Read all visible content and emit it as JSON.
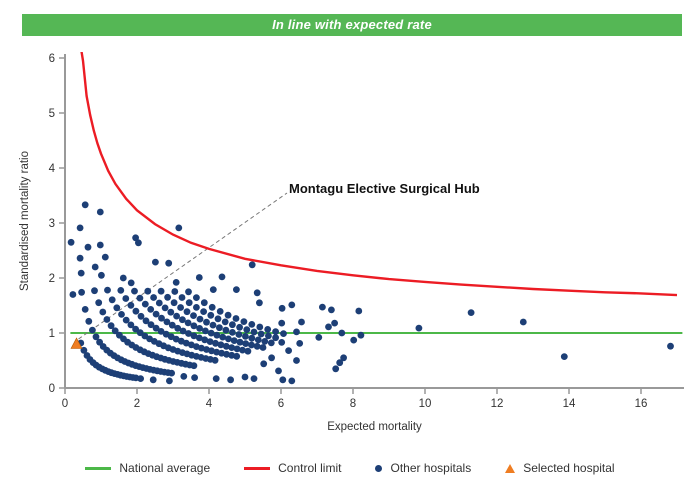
{
  "banner": {
    "text": "In line with expected rate",
    "color": "#55b755"
  },
  "colors": {
    "national_average": "#4cb848",
    "control_limit": "#ec1c24",
    "other_hospitals": "#1d3f76",
    "selected_hospital": "#ef7d22",
    "axis": "#999999",
    "annotation_line": "#777777",
    "text": "#333333"
  },
  "chart_data": {
    "type": "scatter",
    "title": "In line with expected rate",
    "xlabel": "Expected mortality",
    "ylabel": "Standardised mortality ratio",
    "xlim": [
      0,
      17.2
    ],
    "ylim": [
      0,
      6.1
    ],
    "xticks": [
      0,
      2,
      4,
      6,
      8,
      10,
      12,
      14,
      16
    ],
    "yticks": [
      0,
      1,
      2,
      3,
      4,
      5,
      6
    ],
    "grid": false,
    "legend_position": "bottom",
    "national_average": 1.0,
    "control_limit": {
      "description": "upper control limit, approx y = 1 + 3.26 * x^-0.546",
      "points": [
        [
          0.44,
          6.2
        ],
        [
          0.5,
          5.95
        ],
        [
          0.6,
          5.31
        ],
        [
          0.7,
          4.96
        ],
        [
          0.8,
          4.68
        ],
        [
          0.9,
          4.45
        ],
        [
          1.0,
          4.26
        ],
        [
          1.2,
          3.95
        ],
        [
          1.4,
          3.71
        ],
        [
          1.7,
          3.44
        ],
        [
          2.0,
          3.23
        ],
        [
          2.5,
          2.98
        ],
        [
          3.0,
          2.79
        ],
        [
          3.5,
          2.64
        ],
        [
          4.0,
          2.53
        ],
        [
          5.0,
          2.35
        ],
        [
          6.0,
          2.23
        ],
        [
          7.0,
          2.13
        ],
        [
          8.0,
          2.05
        ],
        [
          9.0,
          1.98
        ],
        [
          10.0,
          1.93
        ],
        [
          11.0,
          1.88
        ],
        [
          12.0,
          1.84
        ],
        [
          13.0,
          1.8
        ],
        [
          14.0,
          1.77
        ],
        [
          15.0,
          1.74
        ],
        [
          16.0,
          1.72
        ],
        [
          17.0,
          1.69
        ]
      ]
    },
    "other_hospitals": {
      "marker": "dot",
      "note": "dense hyperbolic bands y=k/x of hospital points plus scattered points",
      "bands": [
        {
          "k": 0.36,
          "x_start": 0.44,
          "x_end": 1.95,
          "step": 0.085
        },
        {
          "k": 0.8,
          "x_start": 0.46,
          "x_end": 2.95,
          "step": 0.1
        },
        {
          "k": 1.45,
          "x_start": 0.82,
          "x_end": 3.6,
          "step": 0.115
        },
        {
          "k": 2.1,
          "x_start": 1.18,
          "x_end": 4.2,
          "step": 0.13
        },
        {
          "k": 2.75,
          "x_start": 1.55,
          "x_end": 4.7,
          "step": 0.14
        },
        {
          "k": 3.4,
          "x_start": 1.93,
          "x_end": 5.1,
          "step": 0.15
        },
        {
          "k": 4.05,
          "x_start": 2.3,
          "x_end": 5.45,
          "step": 0.16
        },
        {
          "k": 4.7,
          "x_start": 2.67,
          "x_end": 5.75,
          "step": 0.18
        },
        {
          "k": 5.35,
          "x_start": 3.05,
          "x_end": 5.95,
          "step": 0.2
        },
        {
          "k": 6.0,
          "x_start": 3.43,
          "x_end": 6.15,
          "step": 0.22
        }
      ],
      "scatter_points": [
        [
          0.56,
          3.33
        ],
        [
          0.98,
          3.2
        ],
        [
          0.42,
          2.91
        ],
        [
          0.17,
          2.65
        ],
        [
          0.64,
          2.56
        ],
        [
          0.98,
          2.6
        ],
        [
          1.12,
          2.38
        ],
        [
          0.42,
          2.36
        ],
        [
          0.84,
          2.2
        ],
        [
          1.01,
          2.05
        ],
        [
          0.45,
          2.09
        ],
        [
          1.96,
          2.73
        ],
        [
          2.04,
          2.64
        ],
        [
          2.51,
          2.29
        ],
        [
          1.62,
          2.0
        ],
        [
          1.84,
          1.91
        ],
        [
          3.16,
          2.91
        ],
        [
          2.88,
          2.27
        ],
        [
          4.36,
          2.02
        ],
        [
          5.2,
          2.24
        ],
        [
          3.09,
          1.92
        ],
        [
          3.73,
          2.01
        ],
        [
          4.12,
          1.79
        ],
        [
          4.76,
          1.79
        ],
        [
          5.34,
          1.73
        ],
        [
          5.4,
          1.55
        ],
        [
          6.3,
          1.51
        ],
        [
          0.22,
          1.7
        ],
        [
          6.02,
          1.18
        ],
        [
          6.57,
          1.2
        ],
        [
          6.43,
          1.02
        ],
        [
          7.05,
          0.92
        ],
        [
          6.02,
          0.83
        ],
        [
          6.52,
          0.81
        ],
        [
          5.74,
          0.55
        ],
        [
          6.21,
          0.68
        ],
        [
          6.43,
          0.5
        ],
        [
          5.52,
          0.44
        ],
        [
          5.93,
          0.31
        ],
        [
          7.4,
          1.42
        ],
        [
          7.49,
          1.18
        ],
        [
          8.16,
          1.4
        ],
        [
          8.02,
          0.87
        ],
        [
          8.22,
          0.96
        ],
        [
          7.74,
          0.55
        ],
        [
          7.63,
          0.46
        ],
        [
          7.52,
          0.35
        ],
        [
          7.32,
          1.11
        ],
        [
          7.69,
          1.0
        ],
        [
          7.15,
          1.47
        ],
        [
          6.03,
          1.45
        ],
        [
          2.1,
          0.17
        ],
        [
          2.45,
          0.15
        ],
        [
          2.9,
          0.13
        ],
        [
          3.3,
          0.21
        ],
        [
          3.6,
          0.19
        ],
        [
          4.2,
          0.17
        ],
        [
          4.6,
          0.15
        ],
        [
          5.0,
          0.2
        ],
        [
          5.25,
          0.17
        ],
        [
          6.05,
          0.15
        ],
        [
          6.3,
          0.13
        ],
        [
          9.83,
          1.09
        ],
        [
          11.28,
          1.37
        ],
        [
          12.73,
          1.2
        ],
        [
          13.87,
          0.57
        ],
        [
          16.82,
          0.76
        ]
      ]
    },
    "selected_hospital": {
      "x": 0.32,
      "y": 0.8,
      "label": "Montagu Elective Surgical Hub",
      "marker": "triangle"
    }
  },
  "legend": {
    "items": [
      {
        "label": "National average",
        "marker": "line",
        "color": "#4cb848"
      },
      {
        "label": "Control limit",
        "marker": "line",
        "color": "#ec1c24"
      },
      {
        "label": "Other hospitals",
        "marker": "dot",
        "color": "#1d3f76"
      },
      {
        "label": "Selected hospital",
        "marker": "triangle",
        "color": "#ef7d22"
      }
    ]
  }
}
